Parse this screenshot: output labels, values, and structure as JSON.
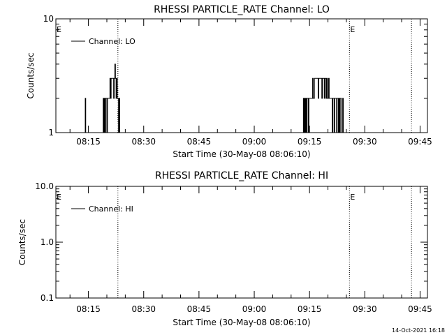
{
  "footer_timestamp": "14-Oct-2021 16:18",
  "chart_data": [
    {
      "type": "line",
      "title": "RHESSI PARTICLE_RATE Channel: LO",
      "xlabel": "Start Time (30-May-08 08:06:10)",
      "ylabel": "Counts/sec",
      "xlim": [
        "08:06:10",
        "09:47:00"
      ],
      "xticks": [
        "08:15",
        "08:30",
        "08:45",
        "09:00",
        "09:15",
        "09:30",
        "09:45"
      ],
      "yscale": "log",
      "ylim": [
        1,
        10
      ],
      "yticks": [
        "1",
        "10"
      ],
      "legend": {
        "location": "top-left",
        "entries": [
          "Channel: LO"
        ]
      },
      "markers": [
        {
          "label": "E",
          "time": "08:06:10",
          "line": "none"
        },
        {
          "label": "",
          "time": "08:23:00",
          "line": "dotted"
        },
        {
          "label": "E",
          "time": "09:25:50",
          "line": "dotted"
        },
        {
          "label": "",
          "time": "09:42:40",
          "line": "dotted"
        }
      ],
      "series": [
        {
          "name": "Channel: LO",
          "color": "#000000",
          "x": [
            "08:14:00",
            "08:14:08",
            "08:14:16",
            "08:14:24",
            "08:18:50",
            "08:19:00",
            "08:19:10",
            "08:19:20",
            "08:19:30",
            "08:19:40",
            "08:19:50",
            "08:20:00",
            "08:20:10",
            "08:20:20",
            "08:20:30",
            "08:20:40",
            "08:20:50",
            "08:21:00",
            "08:21:10",
            "08:21:20",
            "08:21:30",
            "08:21:40",
            "08:21:50",
            "08:22:00",
            "08:22:10",
            "08:22:20",
            "08:22:30",
            "08:22:40",
            "08:22:50",
            "08:23:00",
            "08:23:10",
            "08:23:20",
            "08:23:30",
            "08:23:40",
            "08:23:50",
            "08:24:00",
            "09:13:10",
            "09:13:20",
            "09:13:30",
            "09:13:40",
            "09:13:50",
            "09:14:00",
            "09:14:10",
            "09:14:20",
            "09:14:30",
            "09:14:40",
            "09:14:50",
            "09:15:00",
            "09:15:10",
            "09:15:20",
            "09:15:30",
            "09:15:40",
            "09:15:50",
            "09:16:00",
            "09:16:10",
            "09:16:20",
            "09:16:30",
            "09:16:40",
            "09:16:50",
            "09:17:00",
            "09:17:10",
            "09:17:20",
            "09:17:30",
            "09:17:40",
            "09:17:50",
            "09:18:00",
            "09:18:10",
            "09:18:20",
            "09:18:30",
            "09:18:40",
            "09:18:50",
            "09:19:00",
            "09:19:10",
            "09:19:20",
            "09:19:30",
            "09:19:40",
            "09:19:50",
            "09:20:00",
            "09:20:10",
            "09:20:20",
            "09:20:30",
            "09:20:40",
            "09:20:50",
            "09:21:00",
            "09:21:10",
            "09:21:20",
            "09:21:30",
            "09:21:40",
            "09:21:50",
            "09:22:00",
            "09:22:10",
            "09:22:20",
            "09:22:30",
            "09:22:40",
            "09:22:50",
            "09:23:00",
            "09:23:10",
            "09:23:20",
            "09:23:30",
            "09:23:40",
            "09:23:50",
            "09:24:00",
            "09:24:10",
            "09:24:20"
          ],
          "y": [
            1,
            2,
            1,
            1,
            1,
            2,
            1,
            2,
            1,
            2,
            2,
            1,
            2,
            2,
            2,
            2,
            3,
            2,
            3,
            3,
            3,
            3,
            2,
            3,
            4,
            3,
            2,
            3,
            2,
            2,
            1,
            2,
            1,
            1,
            1,
            1,
            1,
            2,
            1,
            2,
            1,
            2,
            1,
            2,
            2,
            1,
            2,
            2,
            2,
            2,
            2,
            2,
            3,
            2,
            2,
            3,
            3,
            3,
            3,
            3,
            3,
            2,
            3,
            3,
            3,
            3,
            3,
            2,
            3,
            3,
            3,
            2,
            3,
            3,
            2,
            3,
            2,
            2,
            3,
            2,
            2,
            2,
            2,
            2,
            1,
            2,
            2,
            1,
            2,
            2,
            2,
            1,
            2,
            2,
            1,
            2,
            1,
            2,
            2,
            1,
            1,
            2,
            1,
            1
          ]
        }
      ]
    },
    {
      "type": "line",
      "title": "RHESSI PARTICLE_RATE Channel: HI",
      "xlabel": "Start Time (30-May-08 08:06:10)",
      "ylabel": "Counts/sec",
      "xlim": [
        "08:06:10",
        "09:47:00"
      ],
      "xticks": [
        "08:15",
        "08:30",
        "08:45",
        "09:00",
        "09:15",
        "09:30",
        "09:45"
      ],
      "yscale": "log",
      "ylim": [
        0.1,
        10
      ],
      "yticks": [
        "0.1",
        "1.0",
        "10.0"
      ],
      "legend": {
        "location": "top-left",
        "entries": [
          "Channel: HI"
        ]
      },
      "markers": [
        {
          "label": "E",
          "time": "08:06:10",
          "line": "none"
        },
        {
          "label": "",
          "time": "08:23:00",
          "line": "dotted"
        },
        {
          "label": "E",
          "time": "09:25:50",
          "line": "dotted"
        },
        {
          "label": "",
          "time": "09:42:40",
          "line": "dotted"
        }
      ],
      "series": [
        {
          "name": "Channel: HI",
          "color": "#000000",
          "x": [],
          "y": []
        }
      ]
    }
  ]
}
